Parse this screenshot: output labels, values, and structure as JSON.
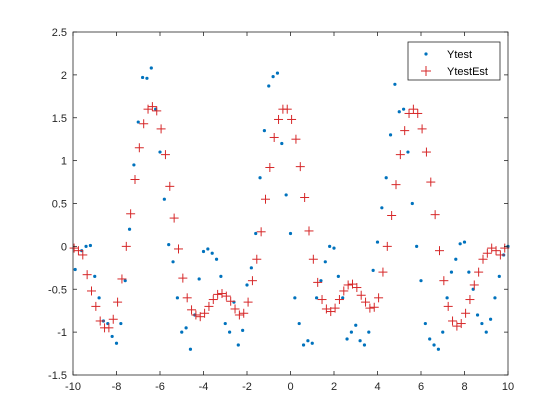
{
  "chart_data": {
    "type": "scatter",
    "title": "",
    "xlabel": "",
    "ylabel": "",
    "xlim": [
      -10,
      10
    ],
    "ylim": [
      -1.5,
      2.5
    ],
    "xticks": [
      -10,
      -8,
      -6,
      -4,
      -2,
      0,
      2,
      4,
      6,
      8,
      10
    ],
    "yticks": [
      -1.5,
      -1,
      -0.5,
      0,
      0.5,
      1,
      1.5,
      2,
      2.5
    ],
    "xtick_labels": [
      "-10",
      "-8",
      "-6",
      "-4",
      "-2",
      "0",
      "2",
      "4",
      "6",
      "8",
      "10"
    ],
    "ytick_labels": [
      "-1.5",
      "-1",
      "-0.5",
      "0",
      "0.5",
      "1",
      "1.5",
      "2",
      "2.5"
    ],
    "grid": false,
    "legend_position": "top-right",
    "series": [
      {
        "name": "Ytest",
        "marker": "dot",
        "color": "#0072BD",
        "x": [
          -9.9,
          -9.6,
          -9.4,
          -9.2,
          -9.0,
          -8.8,
          -8.6,
          -8.4,
          -8.2,
          -8.0,
          -7.8,
          -7.6,
          -7.4,
          -7.2,
          -7.0,
          -6.8,
          -6.6,
          -6.4,
          -6.2,
          -6.0,
          -5.8,
          -5.6,
          -5.4,
          -5.2,
          -5.0,
          -4.8,
          -4.6,
          -4.4,
          -4.2,
          -4.0,
          -3.8,
          -3.6,
          -3.4,
          -3.2,
          -3.0,
          -2.8,
          -2.6,
          -2.4,
          -2.2,
          -2.0,
          -1.8,
          -1.6,
          -1.4,
          -1.2,
          -1.0,
          -0.8,
          -0.6,
          -0.4,
          -0.2,
          0.0,
          0.2,
          0.4,
          0.6,
          0.8,
          1.0,
          1.2,
          1.4,
          1.6,
          1.8,
          2.0,
          2.2,
          2.4,
          2.6,
          2.8,
          3.0,
          3.2,
          3.4,
          3.6,
          3.8,
          4.0,
          4.2,
          4.4,
          4.6,
          4.8,
          5.0,
          5.2,
          5.4,
          5.6,
          5.8,
          6.0,
          6.2,
          6.4,
          6.6,
          6.8,
          7.0,
          7.2,
          7.4,
          7.6,
          7.8,
          8.0,
          8.2,
          8.4,
          8.6,
          8.8,
          9.0,
          9.2,
          9.4,
          9.6,
          9.8,
          10.0
        ],
        "y": [
          -0.27,
          -0.05,
          0.0,
          0.01,
          -0.35,
          -0.6,
          -0.87,
          -0.9,
          -1.05,
          -1.13,
          -0.9,
          -0.4,
          0.2,
          0.95,
          1.45,
          1.97,
          1.96,
          2.08,
          1.6,
          1.1,
          0.55,
          0.02,
          -0.18,
          -0.6,
          -1.0,
          -0.95,
          -1.2,
          -0.8,
          -0.38,
          -0.06,
          -0.03,
          -0.08,
          -0.15,
          -0.35,
          -0.9,
          -1.0,
          -0.65,
          -1.15,
          -0.98,
          -0.45,
          -0.25,
          0.15,
          0.8,
          1.35,
          1.87,
          1.98,
          2.02,
          1.2,
          0.6,
          0.15,
          -0.6,
          -0.9,
          -1.15,
          -1.1,
          -1.13,
          -0.6,
          -0.4,
          -0.18,
          0.0,
          -0.02,
          -0.35,
          -0.6,
          -1.08,
          -1.0,
          -0.92,
          -1.1,
          -1.15,
          -1.0,
          -0.28,
          0.05,
          0.45,
          0.8,
          1.3,
          1.89,
          1.57,
          1.6,
          1.1,
          0.5,
          0.0,
          -0.4,
          -0.9,
          -1.08,
          -1.15,
          -1.2,
          -1.0,
          -0.6,
          -0.3,
          -0.15,
          0.03,
          0.05,
          -0.3,
          -0.5,
          -0.8,
          -0.9,
          -1.0,
          -0.85,
          -0.6,
          -0.35,
          -0.1,
          0.0
        ]
      },
      {
        "name": "YtestEst",
        "marker": "plus",
        "color": "#D62728",
        "x": [
          -9.95,
          -9.75,
          -9.55,
          -9.35,
          -9.15,
          -8.95,
          -8.75,
          -8.55,
          -8.35,
          -8.15,
          -7.95,
          -7.75,
          -7.55,
          -7.35,
          -7.15,
          -6.95,
          -6.75,
          -6.55,
          -6.35,
          -6.15,
          -5.95,
          -5.75,
          -5.55,
          -5.35,
          -5.15,
          -4.95,
          -4.75,
          -4.55,
          -4.35,
          -4.15,
          -3.95,
          -3.75,
          -3.55,
          -3.35,
          -3.15,
          -2.95,
          -2.75,
          -2.55,
          -2.35,
          -2.15,
          -1.95,
          -1.75,
          -1.55,
          -1.35,
          -1.15,
          -0.95,
          -0.75,
          -0.55,
          -0.35,
          -0.15,
          0.05,
          0.25,
          0.45,
          0.65,
          0.85,
          1.05,
          1.25,
          1.45,
          1.65,
          1.85,
          2.05,
          2.25,
          2.45,
          2.65,
          2.85,
          3.05,
          3.25,
          3.45,
          3.65,
          3.85,
          4.05,
          4.25,
          4.45,
          4.65,
          4.85,
          5.05,
          5.25,
          5.45,
          5.65,
          5.85,
          6.05,
          6.25,
          6.45,
          6.65,
          6.85,
          7.05,
          7.25,
          7.45,
          7.65,
          7.85,
          8.05,
          8.25,
          8.45,
          8.65,
          8.85,
          9.05,
          9.25,
          9.45,
          9.65,
          9.85
        ],
        "y": [
          -0.02,
          -0.05,
          -0.1,
          -0.33,
          -0.52,
          -0.7,
          -0.87,
          -0.95,
          -0.95,
          -0.85,
          -0.65,
          -0.38,
          0.0,
          0.38,
          0.78,
          1.15,
          1.43,
          1.6,
          1.63,
          1.58,
          1.37,
          1.07,
          0.7,
          0.33,
          -0.03,
          -0.37,
          -0.6,
          -0.74,
          -0.8,
          -0.82,
          -0.78,
          -0.7,
          -0.62,
          -0.56,
          -0.55,
          -0.58,
          -0.64,
          -0.73,
          -0.8,
          -0.78,
          -0.65,
          -0.4,
          -0.15,
          0.17,
          0.55,
          0.92,
          1.27,
          1.48,
          1.6,
          1.6,
          1.48,
          1.25,
          0.93,
          0.57,
          0.18,
          -0.15,
          -0.42,
          -0.62,
          -0.73,
          -0.76,
          -0.72,
          -0.62,
          -0.52,
          -0.45,
          -0.44,
          -0.48,
          -0.57,
          -0.65,
          -0.72,
          -0.71,
          -0.6,
          -0.3,
          0.0,
          0.36,
          0.72,
          1.07,
          1.35,
          1.55,
          1.6,
          1.55,
          1.37,
          1.1,
          0.75,
          0.37,
          -0.05,
          -0.4,
          -0.7,
          -0.87,
          -0.93,
          -0.9,
          -0.78,
          -0.62,
          -0.45,
          -0.3,
          -0.15,
          -0.08,
          -0.02,
          -0.05,
          -0.1,
          -0.02
        ]
      }
    ],
    "legend": {
      "entries": [
        "Ytest",
        "YtestEst"
      ]
    }
  }
}
